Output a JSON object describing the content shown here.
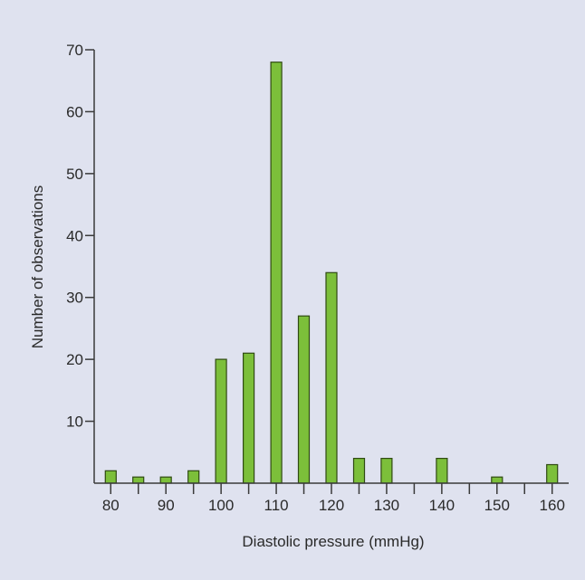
{
  "chart_data": {
    "type": "bar",
    "xlabel": "Diastolic pressure (mmHg)",
    "ylabel": "Number of observations",
    "x": [
      80,
      85,
      90,
      95,
      100,
      105,
      110,
      115,
      120,
      125,
      130,
      140,
      150,
      160
    ],
    "values": [
      2,
      1,
      1,
      2,
      20,
      21,
      68,
      27,
      34,
      4,
      4,
      4,
      1,
      3
    ],
    "x_ticks": [
      80,
      85,
      90,
      95,
      100,
      105,
      110,
      115,
      120,
      125,
      130,
      135,
      140,
      145,
      150,
      155,
      160
    ],
    "x_tick_labels": [
      "80",
      "90",
      "100",
      "110",
      "120",
      "130",
      "140",
      "150",
      "160"
    ],
    "y_tick_labels": [
      "10",
      "20",
      "30",
      "40",
      "50",
      "60",
      "70"
    ],
    "xlim": [
      77,
      163
    ],
    "ylim": [
      0,
      70
    ],
    "grid": false,
    "colors": {
      "background": "#dfe2ef",
      "bar_fill": "#7cbf3a",
      "bar_stroke": "#2f4a12",
      "axis": "#3a3a3a",
      "text": "#2a2a2a"
    }
  }
}
